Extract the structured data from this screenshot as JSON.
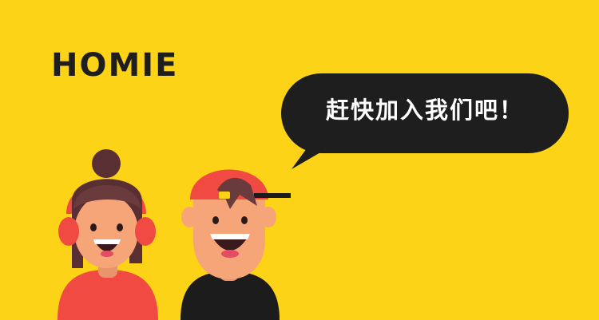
{
  "brand": {
    "name": "HOMIE"
  },
  "speech_bubble": {
    "text": "赶快加入我们吧！"
  },
  "colors": {
    "background": "#FDD318",
    "ink": "#1E1E1E",
    "skin": "#F6A579",
    "red": "#F04A42",
    "hair": "#6A3B3C"
  }
}
